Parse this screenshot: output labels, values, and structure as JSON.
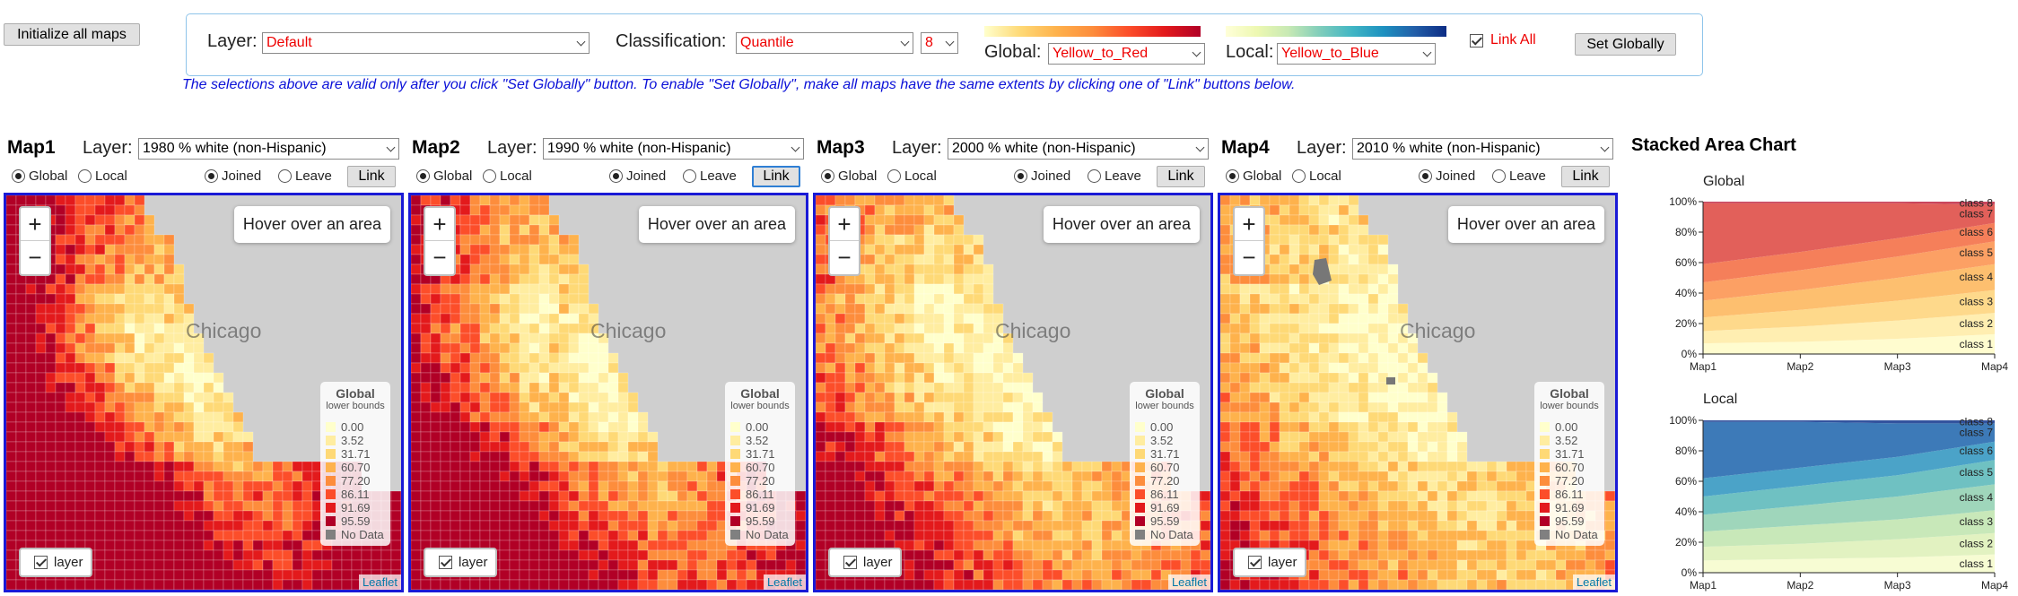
{
  "toolbar": {
    "init_label": "Initialize all maps",
    "layer_label": "Layer:",
    "layer_value": "Default",
    "classification_label": "Classification:",
    "classification_value": "Quantile",
    "class_count": "8",
    "global_label": "Global:",
    "global_scheme": "Yellow_to_Red",
    "local_label": "Local:",
    "local_scheme": "Yellow_to_Blue",
    "link_all_label": "Link All",
    "set_globally_label": "Set Globally",
    "note": "The selections above are valid only after you click \"Set Globally\" button. To enable \"Set Globally\", make all maps have the same extents by clicking one of \"Link\" buttons below."
  },
  "maps": [
    {
      "title": "Map1",
      "layer_label": "Layer:",
      "layer_value": "1980 % white (non-Hispanic)",
      "global": "Global",
      "local": "Local",
      "joined": "Joined",
      "leave": "Leave",
      "link": "Link",
      "hover": "Hover over an area",
      "layer_toggle": "layer",
      "attribution": "Leaflet",
      "city": "Chicago"
    },
    {
      "title": "Map2",
      "layer_label": "Layer:",
      "layer_value": "1990 % white (non-Hispanic)",
      "global": "Global",
      "local": "Local",
      "joined": "Joined",
      "leave": "Leave",
      "link": "Link",
      "hover": "Hover over an area",
      "layer_toggle": "layer",
      "attribution": "Leaflet",
      "city": "Chicago"
    },
    {
      "title": "Map3",
      "layer_label": "Layer:",
      "layer_value": "2000 % white (non-Hispanic)",
      "global": "Global",
      "local": "Local",
      "joined": "Joined",
      "leave": "Leave",
      "link": "Link",
      "hover": "Hover over an area",
      "layer_toggle": "layer",
      "attribution": "Leaflet",
      "city": "Chicago"
    },
    {
      "title": "Map4",
      "layer_label": "Layer:",
      "layer_value": "2010 % white (non-Hispanic)",
      "global": "Global",
      "local": "Local",
      "joined": "Joined",
      "leave": "Leave",
      "link": "Link",
      "hover": "Hover over an area",
      "layer_toggle": "layer",
      "attribution": "Leaflet",
      "city": "Chicago"
    }
  ],
  "legend": {
    "title": "Global",
    "subtitle": "lower bounds",
    "items": [
      {
        "label": "0.00",
        "color": "#ffffcc"
      },
      {
        "label": "3.52",
        "color": "#ffeda0"
      },
      {
        "label": "31.71",
        "color": "#fed976"
      },
      {
        "label": "60.70",
        "color": "#feb24c"
      },
      {
        "label": "77.20",
        "color": "#fd8d3c"
      },
      {
        "label": "86.11",
        "color": "#fc4e2a"
      },
      {
        "label": "91.69",
        "color": "#e31a1c"
      },
      {
        "label": "95.59",
        "color": "#b10026"
      },
      {
        "label": "No Data",
        "color": "#808080"
      }
    ]
  },
  "colors": {
    "yellow_to_red": [
      "#ffffcc",
      "#ffeda0",
      "#fed976",
      "#feb24c",
      "#fd8d3c",
      "#fc4e2a",
      "#e31a1c",
      "#b10026"
    ],
    "yellow_to_blue": [
      "#ffffd9",
      "#edf8b1",
      "#c7e9b4",
      "#7fcdbb",
      "#41b6c4",
      "#1d91c0",
      "#225ea8",
      "#0c2c84"
    ],
    "global_chart": [
      "#fffccf",
      "#ffeeb1",
      "#fed98b",
      "#fdbf6f",
      "#fca064",
      "#f57f5a",
      "#e2605a",
      "#c9465c"
    ],
    "local_chart": [
      "#f7fcd3",
      "#e2f2c1",
      "#c8e8b9",
      "#9fd6bb",
      "#6fc1c2",
      "#4ba3c8",
      "#3d7ab8",
      "#33539e"
    ],
    "border_blue": "#1a1ad6"
  },
  "stacked_chart": {
    "title": "Stacked Area Chart"
  },
  "chart_data": [
    {
      "type": "area",
      "title": "Global",
      "categories": [
        "Map1",
        "Map2",
        "Map3",
        "Map4"
      ],
      "ylim": [
        0,
        100
      ],
      "y_ticks": [
        "0%",
        "20%",
        "40%",
        "60%",
        "80%",
        "100%"
      ],
      "series": [
        {
          "name": "class 1",
          "values": [
            7,
            8,
            10,
            13
          ]
        },
        {
          "name": "class 2",
          "values": [
            8,
            10,
            12,
            14
          ]
        },
        {
          "name": "class 3",
          "values": [
            9,
            11,
            13,
            15
          ]
        },
        {
          "name": "class 4",
          "values": [
            11,
            13,
            15,
            17
          ]
        },
        {
          "name": "class 5",
          "values": [
            12,
            13,
            14,
            15
          ]
        },
        {
          "name": "class 6",
          "values": [
            12,
            12,
            12,
            12
          ]
        },
        {
          "name": "class 7",
          "values": [
            40,
            32,
            23,
            12
          ]
        },
        {
          "name": "class 8",
          "values": [
            1,
            1,
            1,
            2
          ]
        }
      ]
    },
    {
      "type": "area",
      "title": "Local",
      "categories": [
        "Map1",
        "Map2",
        "Map3",
        "Map4"
      ],
      "ylim": [
        0,
        100
      ],
      "y_ticks": [
        "0%",
        "20%",
        "40%",
        "60%",
        "80%",
        "100%"
      ],
      "series": [
        {
          "name": "class 1",
          "values": [
            8,
            9,
            10,
            12
          ]
        },
        {
          "name": "class 2",
          "values": [
            9,
            10,
            12,
            14
          ]
        },
        {
          "name": "class 3",
          "values": [
            10,
            12,
            13,
            15
          ]
        },
        {
          "name": "class 4",
          "values": [
            11,
            13,
            15,
            17
          ]
        },
        {
          "name": "class 5",
          "values": [
            12,
            13,
            14,
            16
          ]
        },
        {
          "name": "class 6",
          "values": [
            12,
            12,
            12,
            12
          ]
        },
        {
          "name": "class 7",
          "values": [
            37,
            30,
            22,
            12
          ]
        },
        {
          "name": "class 8",
          "values": [
            1,
            1,
            2,
            2
          ]
        }
      ]
    }
  ]
}
